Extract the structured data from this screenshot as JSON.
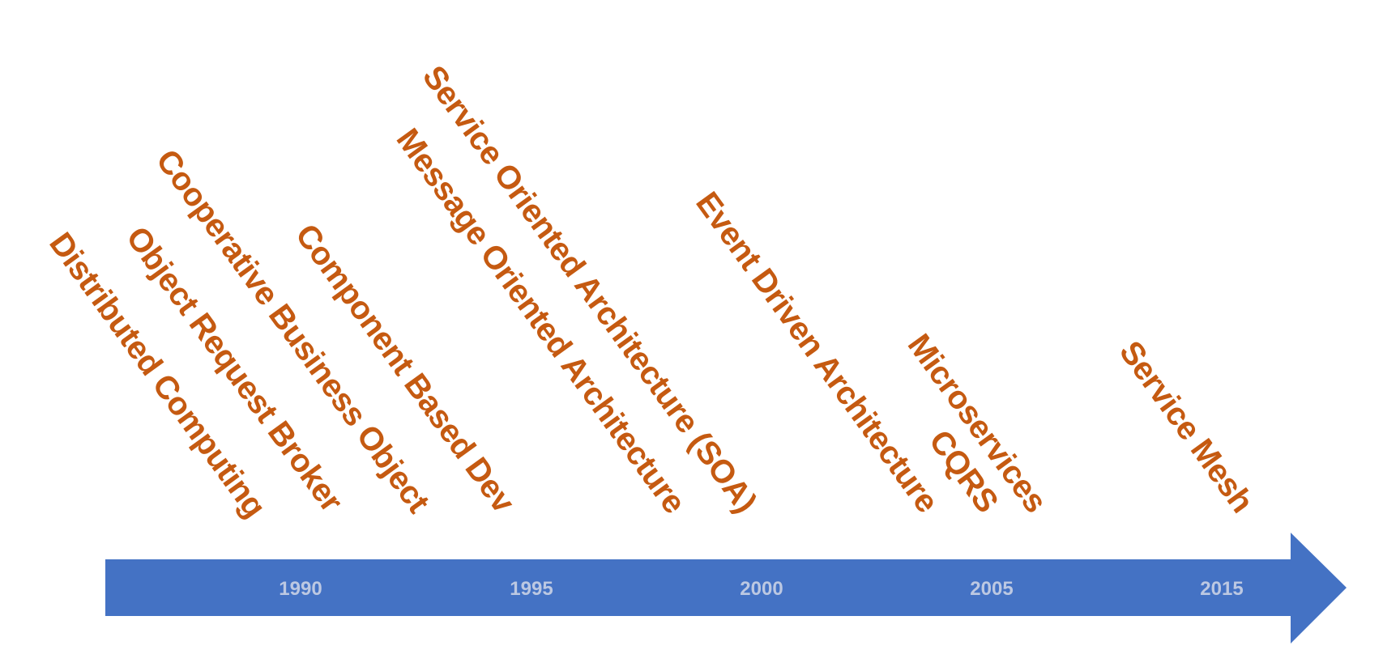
{
  "colors": {
    "arrow": "#4472C4",
    "year_text": "#BCC8E2",
    "era_text": "#C55A11"
  },
  "timeline": {
    "years": [
      "1990",
      "1995",
      "2000",
      "2005",
      "2015"
    ],
    "eras": [
      "Distributed Computing",
      "Object Request Broker",
      "Cooperative Business Object",
      "Component Based Dev",
      "Message Oriented Architecture",
      "Service Oriented Architecture (SOA)",
      "Event Driven Architecture",
      "CQRS",
      "Microservices",
      "Service Mesh"
    ]
  }
}
